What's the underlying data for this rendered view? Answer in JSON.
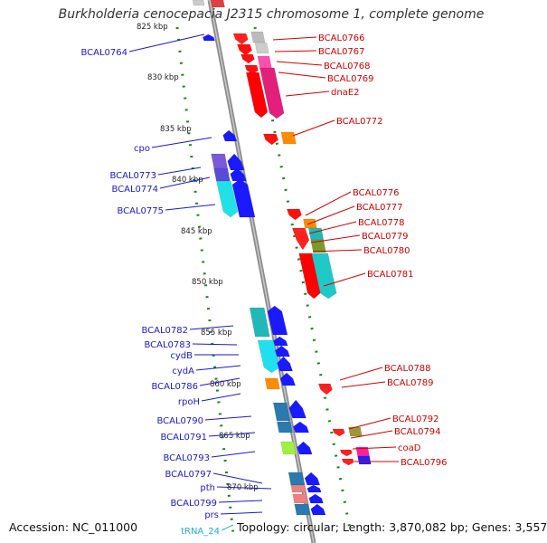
{
  "title": "Burkholderia cenocepacia J2315 chromosome 1, complete genome",
  "footer": {
    "accession": "Accession: NC_011000",
    "info": "Topology: circular; Length: 3,870,082 bp; Genes: 3,557"
  },
  "colors": {
    "left_label": "#1a1acc",
    "right_label": "#d40000",
    "rna_label": "#20b0d8",
    "backbone": "#8c8c8c",
    "tick": "#1a8a1a"
  },
  "kbp_ticks": [
    "825 kbp",
    "830 kbp",
    "835 kbp",
    "840 kbp",
    "845 kbp",
    "850 kbp",
    "855 kbp",
    "860 kbp",
    "865 kbp",
    "870 kbp"
  ],
  "left_labels": [
    "BCAL0764",
    "cpo",
    "BCAL0773",
    "BCAL0774",
    "BCAL0775",
    "BCAL0782",
    "BCAL0783",
    "cydB",
    "cydA",
    "BCAL0786",
    "rpoH",
    "BCAL0790",
    "BCAL0791",
    "BCAL0793",
    "BCAL0797",
    "pth",
    "BCAL0799",
    "prs",
    "tRNA_24"
  ],
  "right_labels": [
    "BCAL0766",
    "BCAL0767",
    "BCAL0768",
    "BCAL0769",
    "dnaE2",
    "BCAL0772",
    "BCAL0776",
    "BCAL0777",
    "BCAL0778",
    "BCAL0779",
    "BCAL0780",
    "BCAL0781",
    "BCAL0788",
    "BCAL0789",
    "BCAL0792",
    "BCAL0794",
    "coaD",
    "BCAL0796"
  ]
}
